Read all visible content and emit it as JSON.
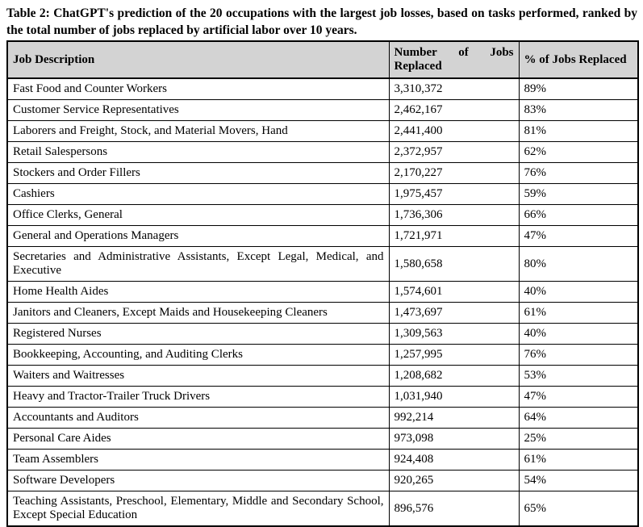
{
  "page": {
    "title": "Table 2: ChatGPT's prediction of the 20 occupations with the largest job losses, based on tasks performed, ranked by the total number of jobs replaced by artificial labor over 10 years."
  },
  "table": {
    "headers": [
      "Job Description",
      "Number of Jobs Replaced",
      "% of Jobs Replaced"
    ],
    "rows": [
      [
        "Fast Food and Counter Workers",
        "3,310,372",
        "89%"
      ],
      [
        "Customer Service Representatives",
        "2,462,167",
        "83%"
      ],
      [
        "Laborers and Freight, Stock, and Material Movers, Hand",
        "2,441,400",
        "81%"
      ],
      [
        "Retail Salespersons",
        "2,372,957",
        "62%"
      ],
      [
        "Stockers and Order Fillers",
        "2,170,227",
        "76%"
      ],
      [
        "Cashiers",
        "1,975,457",
        "59%"
      ],
      [
        "Office Clerks, General",
        "1,736,306",
        "66%"
      ],
      [
        "General and Operations Managers",
        "1,721,971",
        "47%"
      ],
      [
        "Secretaries and Administrative Assistants, Except Legal, Medical, and Executive",
        "1,580,658",
        "80%"
      ],
      [
        "Home Health Aides",
        "1,574,601",
        "40%"
      ],
      [
        "Janitors and Cleaners, Except Maids and Housekeeping Cleaners",
        "1,473,697",
        "61%"
      ],
      [
        "Registered Nurses",
        "1,309,563",
        "40%"
      ],
      [
        "Bookkeeping, Accounting, and Auditing Clerks",
        "1,257,995",
        "76%"
      ],
      [
        "Waiters and Waitresses",
        "1,208,682",
        "53%"
      ],
      [
        "Heavy and Tractor-Trailer Truck Drivers",
        "1,031,940",
        "47%"
      ],
      [
        "Accountants and Auditors",
        "992,214",
        "64%"
      ],
      [
        "Personal Care Aides",
        "973,098",
        "25%"
      ],
      [
        "Team Assemblers",
        "924,408",
        "61%"
      ],
      [
        "Software Developers",
        "920,265",
        "54%"
      ],
      [
        "Teaching Assistants, Preschool, Elementary, Middle and Secondary School, Except Special Education",
        "896,576",
        "65%"
      ]
    ]
  },
  "chart_data": {
    "type": "table",
    "title": "Table 2: ChatGPT's prediction of the 20 occupations with the largest job losses, based on tasks performed, ranked by the total number of jobs replaced by artificial labor over 10 years.",
    "columns": [
      "Job Description",
      "Number of Jobs Replaced",
      "% of Jobs Replaced"
    ],
    "occupations": [
      "Fast Food and Counter Workers",
      "Customer Service Representatives",
      "Laborers and Freight, Stock, and Material Movers, Hand",
      "Retail Salespersons",
      "Stockers and Order Fillers",
      "Cashiers",
      "Office Clerks, General",
      "General and Operations Managers",
      "Secretaries and Administrative Assistants, Except Legal, Medical, and Executive",
      "Home Health Aides",
      "Janitors and Cleaners, Except Maids and Housekeeping Cleaners",
      "Registered Nurses",
      "Bookkeeping, Accounting, and Auditing Clerks",
      "Waiters and Waitresses",
      "Heavy and Tractor-Trailer Truck Drivers",
      "Accountants and Auditors",
      "Personal Care Aides",
      "Team Assemblers",
      "Software Developers",
      "Teaching Assistants, Preschool, Elementary, Middle and Secondary School, Except Special Education"
    ],
    "jobs_replaced": [
      3310372,
      2462167,
      2441400,
      2372957,
      2170227,
      1975457,
      1736306,
      1721971,
      1580658,
      1574601,
      1473697,
      1309563,
      1257995,
      1208682,
      1031940,
      992214,
      973098,
      924408,
      920265,
      896576
    ],
    "pct_replaced": [
      89,
      83,
      81,
      62,
      76,
      59,
      66,
      47,
      80,
      40,
      61,
      40,
      76,
      53,
      47,
      64,
      25,
      61,
      54,
      65
    ]
  },
  "colors": {
    "header_bg": "#d3d3d3",
    "border": "#000000",
    "text": "#000000",
    "background": "#ffffff"
  }
}
